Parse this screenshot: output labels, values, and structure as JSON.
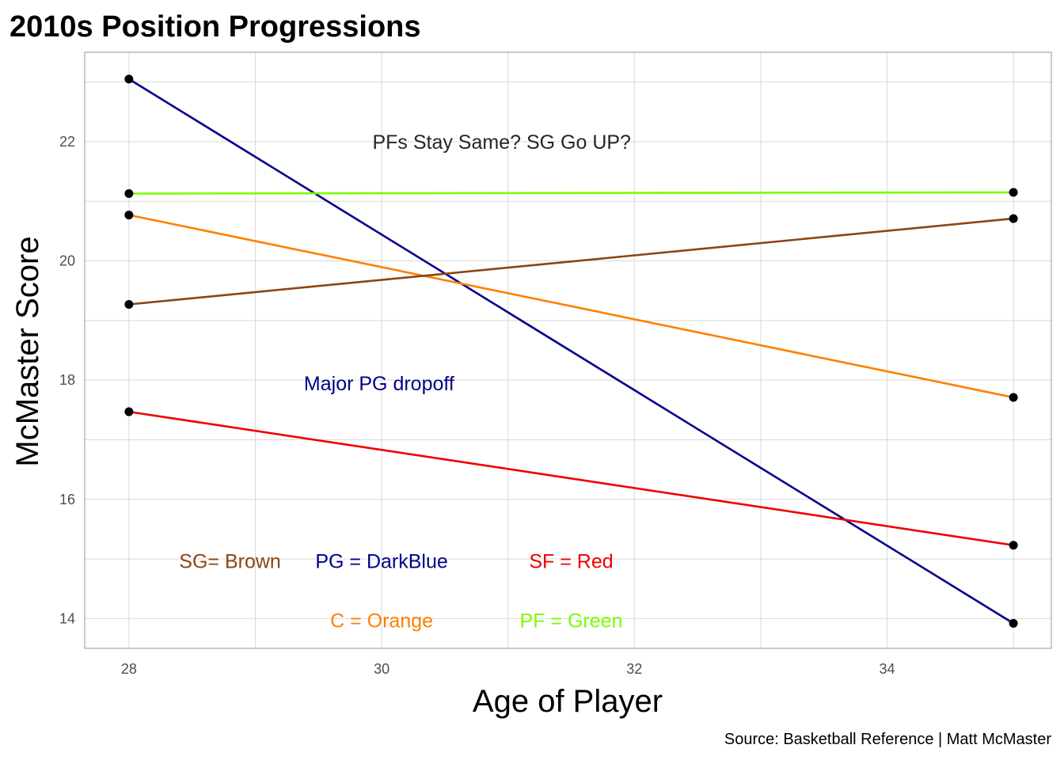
{
  "chart_data": {
    "type": "line",
    "title": "2010s Position Progressions",
    "xlabel": "Age of Player",
    "ylabel": "McMaster Score",
    "caption": "Source: Basketball Reference | Matt McMaster",
    "xlim": [
      27.65,
      35.3
    ],
    "ylim": [
      13.5,
      23.5
    ],
    "x_ticks": [
      28,
      30,
      32,
      34
    ],
    "y_ticks": [
      14,
      16,
      18,
      20,
      22
    ],
    "grid": true,
    "legend": "none",
    "series": [
      {
        "color": "#00008B",
        "points": [
          [
            28,
            23.05
          ],
          [
            35,
            13.92
          ]
        ]
      },
      {
        "color": "#7CFC00",
        "points": [
          [
            28,
            21.13
          ],
          [
            35,
            21.15
          ]
        ]
      },
      {
        "color": "#FF7F00",
        "points": [
          [
            28,
            20.77
          ],
          [
            35,
            17.71
          ]
        ]
      },
      {
        "color": "#8B4513",
        "points": [
          [
            28,
            19.27
          ],
          [
            35,
            20.71
          ]
        ]
      },
      {
        "color": "#EE0000",
        "points": [
          [
            28,
            17.47
          ],
          [
            35,
            15.23
          ]
        ]
      }
    ],
    "annotations": [
      {
        "text": "PFs Stay Same? SG Go UP?",
        "x": 30.95,
        "y": 22.0,
        "color": "#262626"
      },
      {
        "text": "Major PG dropoff",
        "x": 29.98,
        "y": 17.95,
        "color": "#00008B"
      },
      {
        "text": "SG= Brown",
        "x": 28.8,
        "y": 14.97,
        "color": "#8B4513"
      },
      {
        "text": "PG = DarkBlue",
        "x": 30.0,
        "y": 14.97,
        "color": "#00008B"
      },
      {
        "text": "SF = Red",
        "x": 31.5,
        "y": 14.97,
        "color": "#EE0000"
      },
      {
        "text": "C = Orange",
        "x": 30.0,
        "y": 13.97,
        "color": "#FF7F00"
      },
      {
        "text": "PF = Green",
        "x": 31.5,
        "y": 13.97,
        "color": "#7CFC00"
      }
    ]
  }
}
